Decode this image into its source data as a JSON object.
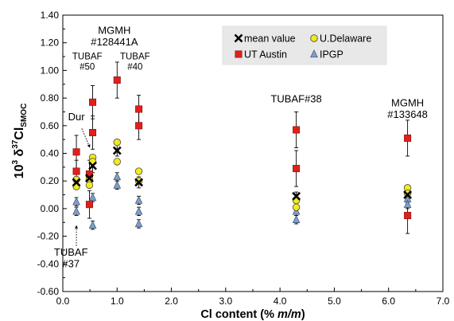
{
  "chart_data": {
    "type": "scatter",
    "title": "",
    "xlabel": "Cl content (% m/m)",
    "xlabel_parts": {
      "prefix": "Cl content (% ",
      "italic": "m/m",
      "suffix": ")"
    },
    "ylabel": "10³ δ³⁷Cl_SMOC",
    "ylabel_parts": {
      "prefix": "10",
      "sup1": "3",
      "mid": " δ",
      "sup2": "37",
      "base": "Cl",
      "sub": "SMOC"
    },
    "xlim": [
      0.0,
      7.0
    ],
    "ylim": [
      -0.6,
      1.4
    ],
    "xticks": [
      "0.0",
      "1.0",
      "2.0",
      "3.0",
      "4.0",
      "5.0",
      "6.0",
      "7.0"
    ],
    "yticks": [
      "-0.60",
      "-0.40",
      "-0.20",
      "0.00",
      "0.20",
      "0.40",
      "0.60",
      "0.80",
      "1.00",
      "1.20",
      "1.40"
    ],
    "legend_position": "top-right",
    "series": [
      {
        "name": "mean value",
        "marker": "x",
        "color": "#000000",
        "points": [
          {
            "x": 0.25,
            "y": 0.19,
            "err": 0.03
          },
          {
            "x": 0.49,
            "y": 0.22,
            "err": 0.03
          },
          {
            "x": 0.55,
            "y": 0.31,
            "err": 0.05
          },
          {
            "x": 1.0,
            "y": 0.42,
            "err": 0.04
          },
          {
            "x": 1.4,
            "y": 0.19,
            "err": 0.04
          },
          {
            "x": 4.3,
            "y": 0.09,
            "err": 0.03
          },
          {
            "x": 6.35,
            "y": 0.1,
            "err": 0.03
          }
        ]
      },
      {
        "name": "U.Delaware",
        "marker": "circle",
        "color": "#f2ea1d",
        "points": [
          {
            "x": 0.25,
            "y": 0.16
          },
          {
            "x": 0.25,
            "y": 0.21
          },
          {
            "x": 0.49,
            "y": 0.21
          },
          {
            "x": 0.49,
            "y": 0.17
          },
          {
            "x": 0.55,
            "y": 0.37
          },
          {
            "x": 0.55,
            "y": 0.34
          },
          {
            "x": 1.0,
            "y": 0.48
          },
          {
            "x": 1.0,
            "y": 0.34
          },
          {
            "x": 1.4,
            "y": 0.27
          },
          {
            "x": 1.4,
            "y": 0.2
          },
          {
            "x": 4.3,
            "y": 0.06
          },
          {
            "x": 4.3,
            "y": 0.01
          },
          {
            "x": 6.35,
            "y": 0.15
          },
          {
            "x": 6.35,
            "y": 0.11
          }
        ]
      },
      {
        "name": "UT Austin",
        "marker": "square",
        "color": "#e0201b",
        "points": [
          {
            "x": 0.25,
            "y": 0.41,
            "err": 0.12
          },
          {
            "x": 0.25,
            "y": 0.27,
            "err": 0.08
          },
          {
            "x": 0.49,
            "y": 0.25,
            "err": 0.1
          },
          {
            "x": 0.49,
            "y": 0.03,
            "err": 0.1
          },
          {
            "x": 0.55,
            "y": 0.77,
            "err": 0.12
          },
          {
            "x": 0.55,
            "y": 0.55,
            "err": 0.12
          },
          {
            "x": 1.0,
            "y": 0.93,
            "err": 0.13
          },
          {
            "x": 1.4,
            "y": 0.72,
            "err": 0.1
          },
          {
            "x": 1.4,
            "y": 0.6,
            "err": 0.1
          },
          {
            "x": 4.3,
            "y": 0.57,
            "err": 0.13
          },
          {
            "x": 4.3,
            "y": 0.29,
            "err": 0.13
          },
          {
            "x": 6.35,
            "y": 0.51,
            "err": 0.13
          },
          {
            "x": 6.35,
            "y": -0.05,
            "err": 0.13
          }
        ]
      },
      {
        "name": "IPGP",
        "marker": "triangle",
        "color": "#7f9fc9",
        "points": [
          {
            "x": 0.25,
            "y": 0.05,
            "err": 0.03
          },
          {
            "x": 0.25,
            "y": -0.02,
            "err": 0.03
          },
          {
            "x": 0.55,
            "y": 0.08,
            "err": 0.03
          },
          {
            "x": 0.55,
            "y": -0.12,
            "err": 0.03
          },
          {
            "x": 1.0,
            "y": 0.23,
            "err": 0.03
          },
          {
            "x": 1.0,
            "y": 0.17,
            "err": 0.03
          },
          {
            "x": 1.4,
            "y": 0.06,
            "err": 0.03
          },
          {
            "x": 1.4,
            "y": -0.02,
            "err": 0.03
          },
          {
            "x": 1.4,
            "y": -0.11,
            "err": 0.03
          },
          {
            "x": 4.3,
            "y": -0.02,
            "err": 0.03
          },
          {
            "x": 4.3,
            "y": -0.08,
            "err": 0.03
          },
          {
            "x": 6.35,
            "y": 0.07,
            "err": 0.03
          },
          {
            "x": 6.35,
            "y": 0.03,
            "err": 0.03
          }
        ]
      }
    ],
    "annotations": [
      {
        "id": "mgmh-128441a",
        "lines": [
          "MGMH",
          "#128441A"
        ],
        "x": 0.95,
        "y": 1.265,
        "size": "large"
      },
      {
        "id": "tubaf-50",
        "lines": [
          "TUBAF",
          "#50"
        ],
        "x": 0.45,
        "y": 1.08,
        "size": "small"
      },
      {
        "id": "tubaf-40",
        "lines": [
          "TUBAF",
          "#40"
        ],
        "x": 1.33,
        "y": 1.08,
        "size": "small"
      },
      {
        "id": "dur",
        "lines": [
          "Dur"
        ],
        "x": 0.25,
        "y": 0.64,
        "size": "large"
      },
      {
        "id": "tubaf-38",
        "lines": [
          "TUBAF#38"
        ],
        "x": 4.3,
        "y": 0.77,
        "size": "large"
      },
      {
        "id": "mgmh-133648",
        "lines": [
          "MGMH",
          "#133648"
        ],
        "x": 6.35,
        "y": 0.74,
        "size": "large"
      },
      {
        "id": "tubaf-37",
        "lines": [
          "TUBAF",
          "#37"
        ],
        "x": 0.15,
        "y": -0.34,
        "size": "large"
      }
    ]
  }
}
